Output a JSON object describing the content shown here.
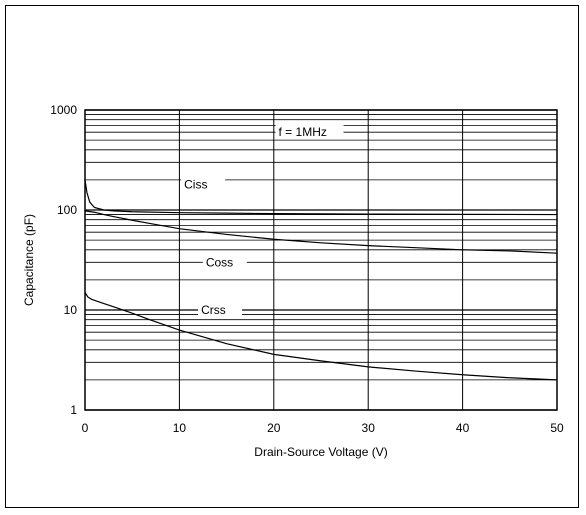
{
  "chart_data": {
    "type": "line",
    "title": "",
    "xlabel": "Drain-Source Voltage (V)",
    "ylabel": "Capacitance (pF)",
    "xlim": [
      0,
      50
    ],
    "ylim": [
      1,
      1000
    ],
    "yscale": "log",
    "grid": true,
    "x_ticks": [
      0,
      10,
      20,
      30,
      40,
      50
    ],
    "x_tick_labels": [
      "0",
      "10",
      "20",
      "30",
      "40",
      "50"
    ],
    "y_ticks": [
      1,
      10,
      100,
      1000
    ],
    "y_tick_labels": [
      "1",
      "10",
      "100",
      "1000"
    ],
    "annotation": "f = 1MHz",
    "series": [
      {
        "name": "Ciss",
        "x": [
          0,
          0.2,
          0.5,
          1,
          2,
          3,
          5,
          10,
          15,
          20,
          25,
          30,
          40,
          50
        ],
        "y": [
          200,
          150,
          120,
          106,
          100,
          98,
          96,
          94,
          93,
          92,
          91.5,
          91,
          90.5,
          90
        ]
      },
      {
        "name": "Coss",
        "x": [
          0,
          1,
          2,
          3,
          5,
          7,
          10,
          15,
          20,
          25,
          30,
          35,
          40,
          45,
          50
        ],
        "y": [
          98,
          95,
          90,
          86,
          79,
          73,
          65,
          57,
          51,
          47,
          44,
          42,
          40,
          39,
          37
        ]
      },
      {
        "name": "Crss",
        "x": [
          0,
          0.3,
          0.7,
          1,
          2,
          3,
          5,
          7,
          10,
          15,
          20,
          25,
          30,
          35,
          40,
          45,
          50
        ],
        "y": [
          15,
          13.5,
          12.8,
          12.5,
          11.6,
          10.8,
          9.3,
          7.9,
          6.3,
          4.6,
          3.6,
          3.1,
          2.7,
          2.45,
          2.25,
          2.1,
          2.0
        ]
      }
    ]
  }
}
